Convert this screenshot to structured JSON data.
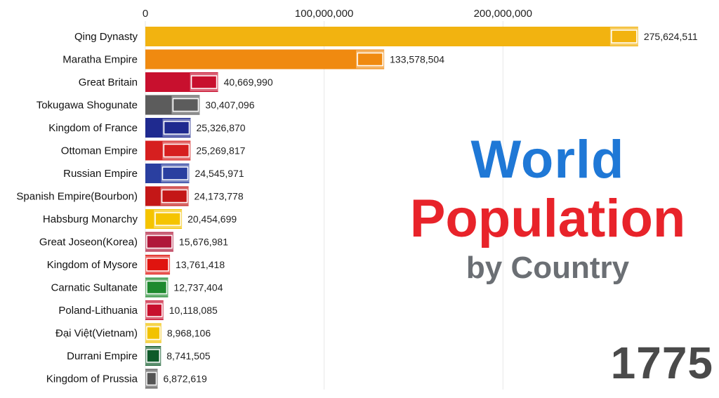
{
  "header": {
    "title_line1": "World",
    "title_line2": "Population",
    "subtitle": "by Country",
    "year": "1775"
  },
  "colors": {
    "title_blue": "#1f78d6",
    "title_red": "#e8232a",
    "subtitle_gray": "#6b6f74",
    "year_gray": "#4a4a4a"
  },
  "chart_data": {
    "type": "bar",
    "orientation": "horizontal",
    "x_ticks": [
      0,
      100000000,
      200000000
    ],
    "x_tick_labels": [
      "0",
      "100,000,000",
      "200,000,000"
    ],
    "categories": [
      "Qing Dynasty",
      "Maratha Empire",
      "Great Britain",
      "Tokugawa Shogunate",
      "Kingdom of France",
      "Ottoman Empire",
      "Russian Empire",
      "Spanish Empire(Bourbon)",
      "Habsburg Monarchy",
      "Great Joseon(Korea)",
      "Kingdom of Mysore",
      "Carnatic Sultanate",
      "Poland-Lithuania",
      "Đại Việt(Vietnam)",
      "Durrani Empire",
      "Kingdom of Prussia"
    ],
    "values": [
      275624511,
      133578504,
      40669990,
      30407096,
      25326870,
      25269817,
      24545971,
      24173778,
      20454699,
      15676981,
      13761418,
      12737404,
      10118085,
      8968106,
      8741505,
      6872619
    ],
    "value_labels": [
      "275,624,511",
      "133,578,504",
      "40,669,990",
      "30,407,096",
      "25,326,870",
      "25,269,817",
      "24,545,971",
      "24,173,778",
      "20,454,699",
      "15,676,981",
      "13,761,418",
      "12,737,404",
      "10,118,085",
      "8,968,106",
      "8,741,505",
      "6,872,619"
    ],
    "bar_colors": [
      "#f2b310",
      "#f08a10",
      "#c8102e",
      "#5c5c5c",
      "#1f2a8f",
      "#d61f1f",
      "#2a3fa0",
      "#c41717",
      "#f5c400",
      "#b0183a",
      "#e0140f",
      "#1e8a2f",
      "#c8102e",
      "#f2c200",
      "#0f5a2a",
      "#555555"
    ],
    "flags": [
      "dragon-flag",
      "saffron-pennant",
      "union-jack",
      "tokugawa-crest",
      "bourbon-lilies",
      "crescent-star",
      "russian-tricolor",
      "spanish-bourbon-arms",
      "habsburg-flag",
      "joseon-flag",
      "mysore-flag",
      "carnatic-crescent",
      "polish-lithuanian-banner",
      "dai-viet-flag",
      "durrani-flag",
      "prussian-eagle"
    ],
    "xlim": [
      0,
      280000000
    ]
  }
}
